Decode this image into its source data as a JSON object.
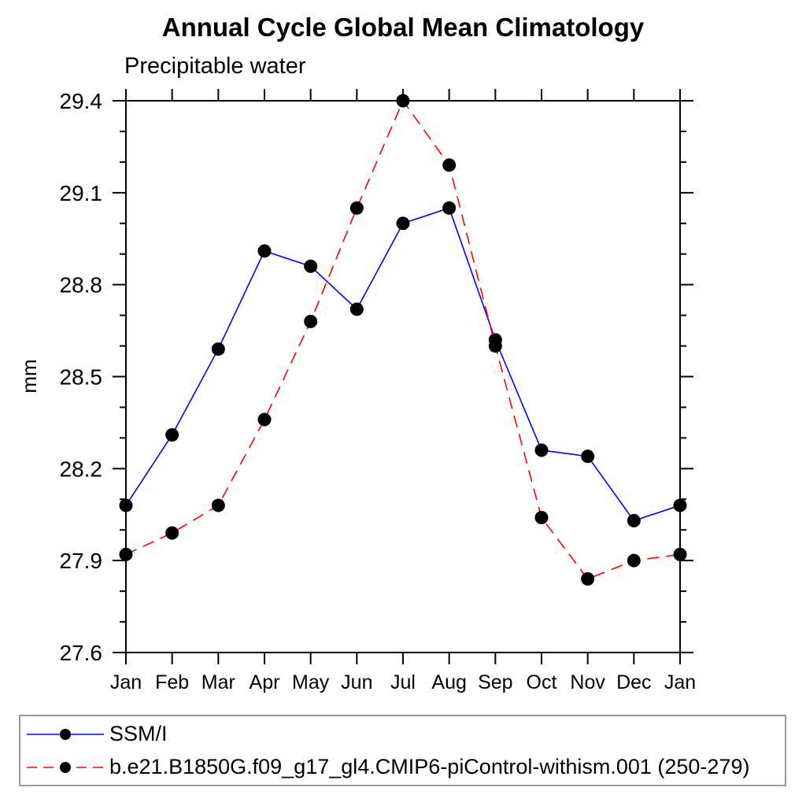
{
  "chart_data": {
    "type": "line",
    "title": "Annual Cycle Global Mean Climatology",
    "subtitle": "Precipitable water",
    "ylabel": "mm",
    "xlabel": "",
    "categories": [
      "Jan",
      "Feb",
      "Mar",
      "Apr",
      "May",
      "Jun",
      "Jul",
      "Aug",
      "Sep",
      "Oct",
      "Nov",
      "Dec",
      "Jan"
    ],
    "ylim": [
      27.6,
      29.4
    ],
    "ytick_major_step": 0.3,
    "ytick_minor_step": 0.1,
    "ytick_labels": [
      "27.6",
      "27.9",
      "28.2",
      "28.5",
      "28.8",
      "29.1",
      "29.4"
    ],
    "grid": false,
    "legend_position": "bottom",
    "axis_color": "#000000",
    "marker_color": "#000000",
    "series": [
      {
        "name": "SSM/I",
        "color": "#0000ff",
        "dash": "solid",
        "marker": "filled-circle",
        "values": [
          28.08,
          28.31,
          28.59,
          28.91,
          28.86,
          28.72,
          29.0,
          29.05,
          28.62,
          28.26,
          28.24,
          28.03,
          28.08
        ]
      },
      {
        "name": "b.e21.B1850G.f09_g17_gl4.CMIP6-piControl-withism.001 (250-279)",
        "color": "#ff0000",
        "dash": "dashed",
        "marker": "filled-circle",
        "values": [
          27.92,
          27.99,
          28.08,
          28.36,
          28.68,
          29.05,
          29.4,
          29.19,
          28.6,
          28.04,
          27.84,
          27.9,
          27.92
        ]
      }
    ]
  }
}
